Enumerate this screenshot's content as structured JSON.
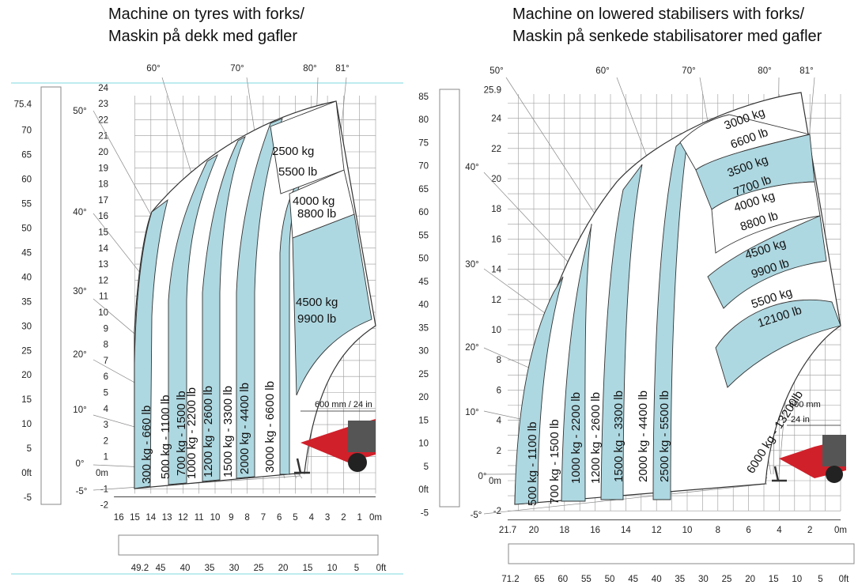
{
  "left": {
    "title_en": "Machine on tyres with forks/",
    "title_no": "Maskin på dekk med gafler",
    "y_m_ticks": [
      "24",
      "23",
      "22",
      "21",
      "20",
      "19",
      "18",
      "17",
      "16",
      "15",
      "14",
      "13",
      "12",
      "11",
      "10",
      "9",
      "8",
      "7",
      "6",
      "5",
      "4",
      "3",
      "2",
      "1",
      "0m",
      "-1",
      "-2"
    ],
    "x_m_ticks": [
      "16",
      "15",
      "14",
      "13",
      "12",
      "11",
      "10",
      "9",
      "8",
      "7",
      "6",
      "5",
      "4",
      "3",
      "2",
      "1",
      "0m"
    ],
    "y_ft_ticks": [
      "75.4",
      "70",
      "65",
      "60",
      "55",
      "50",
      "45",
      "40",
      "35",
      "30",
      "25",
      "20",
      "15",
      "10",
      "5",
      "0ft",
      "-5"
    ],
    "x_ft_ticks": [
      "49.2",
      "45",
      "40",
      "35",
      "30",
      "25",
      "20",
      "15",
      "10",
      "5",
      "0ft"
    ],
    "side_angles": [
      "50°",
      "40°",
      "30°",
      "20°",
      "10°",
      "0°",
      "-5°"
    ],
    "top_angles": [
      "60°",
      "70°",
      "80°",
      "81°"
    ],
    "bands": [
      "300 kg - 660 lb",
      "500 kg - 1100 lb",
      "700 kg - 1500 lb",
      "1000 kg - 2200 lb",
      "1200 kg - 2600 lb",
      "1500 kg - 3300 lb",
      "2000 kg - 4400 lb",
      "3000 kg - 6600 lb"
    ],
    "zones": [
      {
        "kg": "2500 kg",
        "lb": "5500 lb"
      },
      {
        "kg": "4000 kg",
        "lb": "8800 lb"
      },
      {
        "kg": "4500 kg",
        "lb": "9900 lb"
      }
    ],
    "fork_note": "600 mm / 24 in"
  },
  "right": {
    "title_en": "Machine on lowered stabilisers with forks/",
    "title_no": "Maskin på senkede stabilisatorer med gafler",
    "y_m_ticks": [
      "25.9",
      "24",
      "22",
      "20",
      "18",
      "16",
      "14",
      "12",
      "10",
      "8",
      "6",
      "4",
      "2",
      "0m",
      "-2"
    ],
    "x_m_ticks": [
      "21.7",
      "20",
      "18",
      "16",
      "14",
      "12",
      "10",
      "8",
      "6",
      "4",
      "2",
      "0m"
    ],
    "y_ft_ticks": [
      "85",
      "80",
      "75",
      "70",
      "65",
      "60",
      "55",
      "50",
      "45",
      "40",
      "35",
      "30",
      "25",
      "20",
      "15",
      "10",
      "5",
      "0ft",
      "-5"
    ],
    "x_ft_ticks": [
      "71.2",
      "65",
      "60",
      "55",
      "50",
      "45",
      "40",
      "35",
      "30",
      "25",
      "20",
      "15",
      "10",
      "5",
      "0ft"
    ],
    "side_angles": [
      "50°",
      "40°",
      "30°",
      "20°",
      "10°",
      "0°",
      "-5°"
    ],
    "top_angles": [
      "60°",
      "70°",
      "80°",
      "81°"
    ],
    "bands": [
      "500 kg - 1100 lb",
      "700 kg - 1500 lb",
      "1000 kg - 2200 lb",
      "1200 kg - 2600 lb",
      "1500 kg - 3300 lb",
      "2000 kg - 4400 lb",
      "2500 kg - 5500 lb"
    ],
    "zones": [
      {
        "kg": "3000 kg",
        "lb": "6600 lb"
      },
      {
        "kg": "3500 kg",
        "lb": "7700 lb"
      },
      {
        "kg": "4000 kg",
        "lb": "8800 lb"
      },
      {
        "kg": "4500 kg",
        "lb": "9900 lb"
      },
      {
        "kg": "5500 kg",
        "lb": "12100 lb"
      }
    ],
    "arc_label": "6000 kg - 13200lb",
    "fork_note_mm": "600 mm",
    "fork_note_in": "24 in"
  },
  "colors": {
    "zone_fill": "#aed8e1",
    "grid": "#9a9a9a",
    "accent_line": "#7fd8e0",
    "machine_red": "#d0202a"
  }
}
